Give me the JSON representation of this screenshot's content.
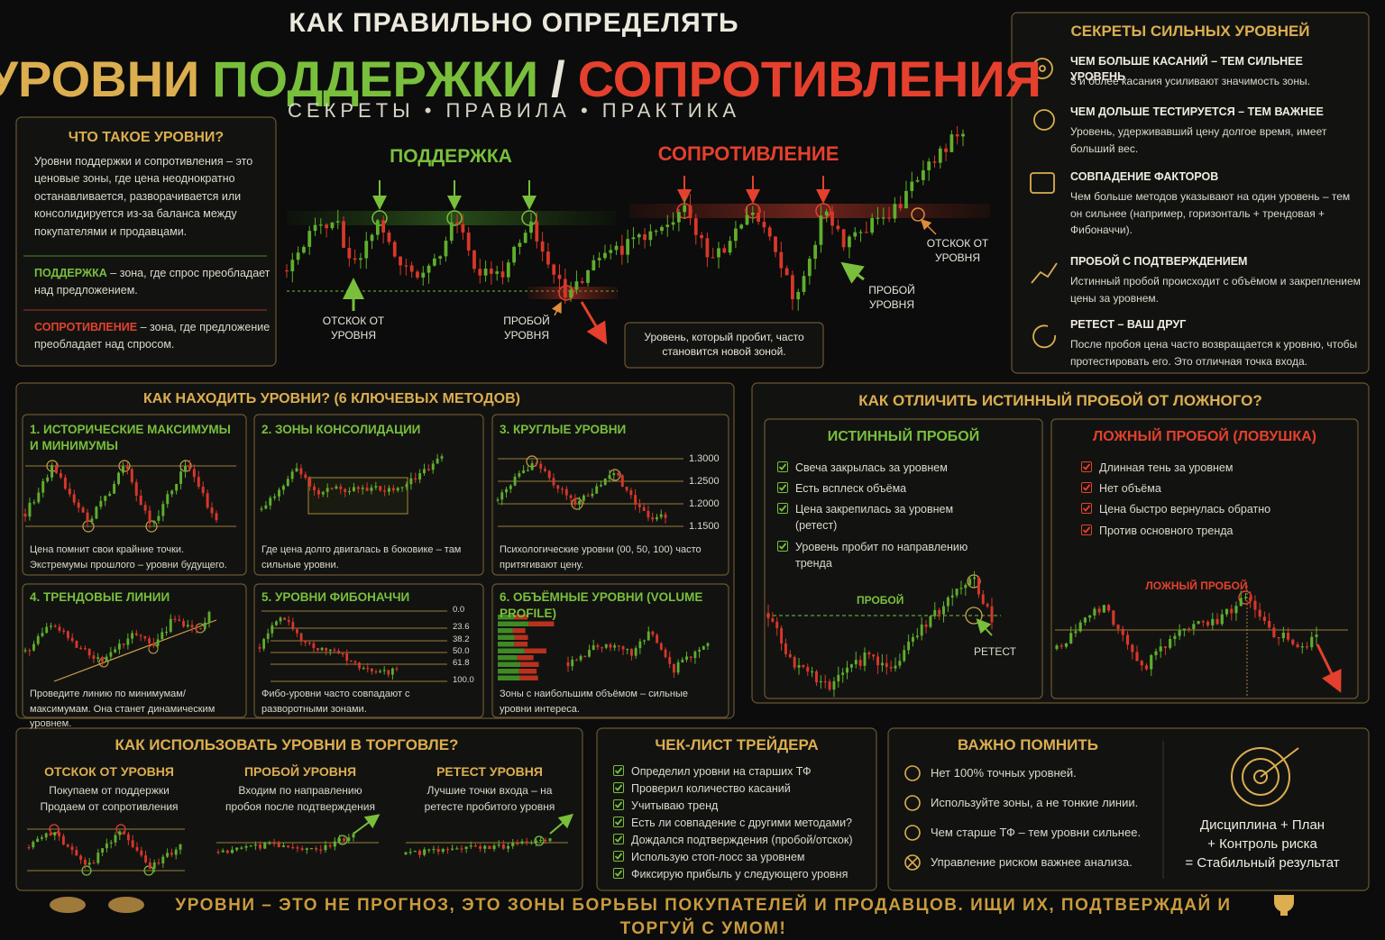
{
  "header": {
    "top": "КАК ПРАВИЛЬНО ОПРЕДЕЛЯТЬ",
    "levels": "УРОВНИ",
    "support": "ПОДДЕРЖКИ",
    "slash": "/",
    "resistance": "СОПРОТИВЛЕНИЯ",
    "subtitle": "СЕКРЕТЫ • ПРАВИЛА • ПРАКТИКА"
  },
  "intro": {
    "title": "ЧТО ТАКОЕ УРОВНИ?",
    "text": "Уровни поддержки и сопротивления – это ценовые зоны, где цена неоднократно останавливается, разворачивается или консолидируется из-за баланса между покупателями и продавцами.",
    "support_term": "ПОДДЕРЖКА",
    "support_text": "– зона, где спрос преобладает над предложением.",
    "resistance_term": "СОПРОТИВЛЕНИЕ",
    "resistance_text": "– зона, где предложение преобладает над спросом."
  },
  "main_chart": {
    "support_label": "ПОДДЕРЖКА",
    "resistance_label": "СОПРОТИВЛЕНИЕ",
    "bounce_support": "ОТСКОК ОТ УРОВНЯ",
    "breakdown": "ПРОБОЙ УРОВНЯ",
    "bounce_resistance": "ОТСКОК ОТ УРОВНЯ",
    "breakout": "ПРОБОЙ УРОВНЯ",
    "note": "Уровень, который пробит, часто становится новой зоной."
  },
  "secrets": {
    "title": "СЕКРЕТЫ СИЛЬНЫХ УРОВНЕЙ",
    "items": [
      {
        "title": "ЧЕМ БОЛЬШЕ КАСАНИЙ – ТЕМ СИЛЬНЕЕ УРОВЕНЬ",
        "text": "3 и более касания усиливают значимость зоны."
      },
      {
        "title": "ЧЕМ ДОЛЬШЕ ТЕСТИРУЕТСЯ – ТЕМ ВАЖНЕЕ",
        "text": "Уровень, удерживавший цену долгое время, имеет больший вес."
      },
      {
        "title": "СОВПАДЕНИЕ ФАКТОРОВ",
        "text": "Чем больше методов указывают на один уровень – тем он сильнее (например, горизонталь + трендовая + Фибоначчи)."
      },
      {
        "title": "ПРОБОЙ С ПОДТВЕРЖДЕНИЕМ",
        "text": "Истинный пробой происходит с объёмом и закреплением цены за уровнем."
      },
      {
        "title": "РЕТЕСТ – ВАШ ДРУГ",
        "text": "После пробоя цена часто возвращается к уровню, чтобы протестировать его. Это отличная точка входа."
      }
    ]
  },
  "methods": {
    "title": "КАК НАХОДИТЬ УРОВНИ? (6 КЛЮЧЕВЫХ МЕТОДОВ)",
    "items": [
      {
        "title": "1. ИСТОРИЧЕСКИЕ МАКСИМУМЫ И МИНИМУМЫ",
        "text": "Цена помнит свои крайние точки. Экстремумы прошлого – уровни будущего."
      },
      {
        "title": "2. ЗОНЫ КОНСОЛИДАЦИИ",
        "text": "Где цена долго двигалась в боковике – там сильные уровни."
      },
      {
        "title": "3. КРУГЛЫЕ УРОВНИ",
        "text": "Психологические уровни (00, 50, 100) часто притягивают цену.",
        "levels": [
          "1.3000",
          "1.2500",
          "1.2000",
          "1.1500"
        ]
      },
      {
        "title": "4. ТРЕНДОВЫЕ ЛИНИИ",
        "text": "Проведите линию по минимумам/максимумам. Она станет динамическим уровнем."
      },
      {
        "title": "5. УРОВНИ ФИБОНАЧЧИ",
        "text": "Фибо-уровни часто совпадают с разворотными зонами.",
        "levels": [
          "0.0",
          "23.6",
          "38.2",
          "50.0",
          "61.8",
          "100.0"
        ]
      },
      {
        "title": "6. ОБЪЁМНЫЕ УРОВНИ (VOLUME PROFILE)",
        "text": "Зоны с наибольшим объёмом – сильные уровни интереса."
      }
    ]
  },
  "breakout": {
    "title": "КАК ОТЛИЧИТЬ ИСТИННЫЙ ПРОБОЙ ОТ ЛОЖНОГО?",
    "true_title": "ИСТИННЫЙ ПРОБОЙ",
    "true_items": [
      "Свеча закрылась за уровнем",
      "Есть всплеск объёма",
      "Цена закрепилась за уровнем (ретест)",
      "Уровень пробит по направлению тренда"
    ],
    "true_breakout_label": "ПРОБОЙ",
    "true_retest_label": "РЕТЕСТ",
    "false_title": "ЛОЖНЫЙ ПРОБОЙ (ЛОВУШКА)",
    "false_items": [
      "Длинная тень за уровнем",
      "Нет объёма",
      "Цена быстро вернулась обратно",
      "Против основного тренда"
    ],
    "false_label": "ЛОЖНЫЙ ПРОБОЙ"
  },
  "usage": {
    "title": "КАК ИСПОЛЬЗОВАТЬ УРОВНИ В ТОРГОВЛЕ?",
    "items": [
      {
        "title": "ОТСКОК ОТ УРОВНЯ",
        "text": "Покупаем от поддержки Продаем от сопротивления"
      },
      {
        "title": "ПРОБОЙ УРОВНЯ",
        "text": "Входим по направлению пробоя после подтверждения"
      },
      {
        "title": "РЕТЕСТ УРОВНЯ",
        "text": "Лучшие точки входа – на ретесте пробитого уровня"
      }
    ]
  },
  "checklist": {
    "title": "ЧЕК-ЛИСТ ТРЕЙДЕРА",
    "items": [
      "Определил уровни на старших ТФ",
      "Проверил количество касаний",
      "Учитываю тренд",
      "Есть ли совпадение с другими методами?",
      "Дождался подтверждения (пробой/отскок)",
      "Использую стоп-лосс за уровнем",
      "Фиксирую прибыль у следующего уровня"
    ]
  },
  "remember": {
    "title": "ВАЖНО ПОМНИТЬ",
    "items": [
      "Нет 100% точных уровней.",
      "Используйте зоны, а не тонкие линии.",
      "Чем старше ТФ – тем уровни сильнее.",
      "Управление риском важнее анализа."
    ],
    "motto": [
      "Дисциплина + План",
      "+ Контроль риска",
      "= Стабильный результат"
    ]
  },
  "footer": "УРОВНИ – ЭТО НЕ ПРОГНОЗ, ЭТО ЗОНЫ БОРЬБЫ ПОКУПАТЕЛЕЙ И ПРОДАВЦОВ. ИЩИ ИХ, ПОДТВЕРЖДАЙ И ТОРГУЙ С УМОМ!"
}
